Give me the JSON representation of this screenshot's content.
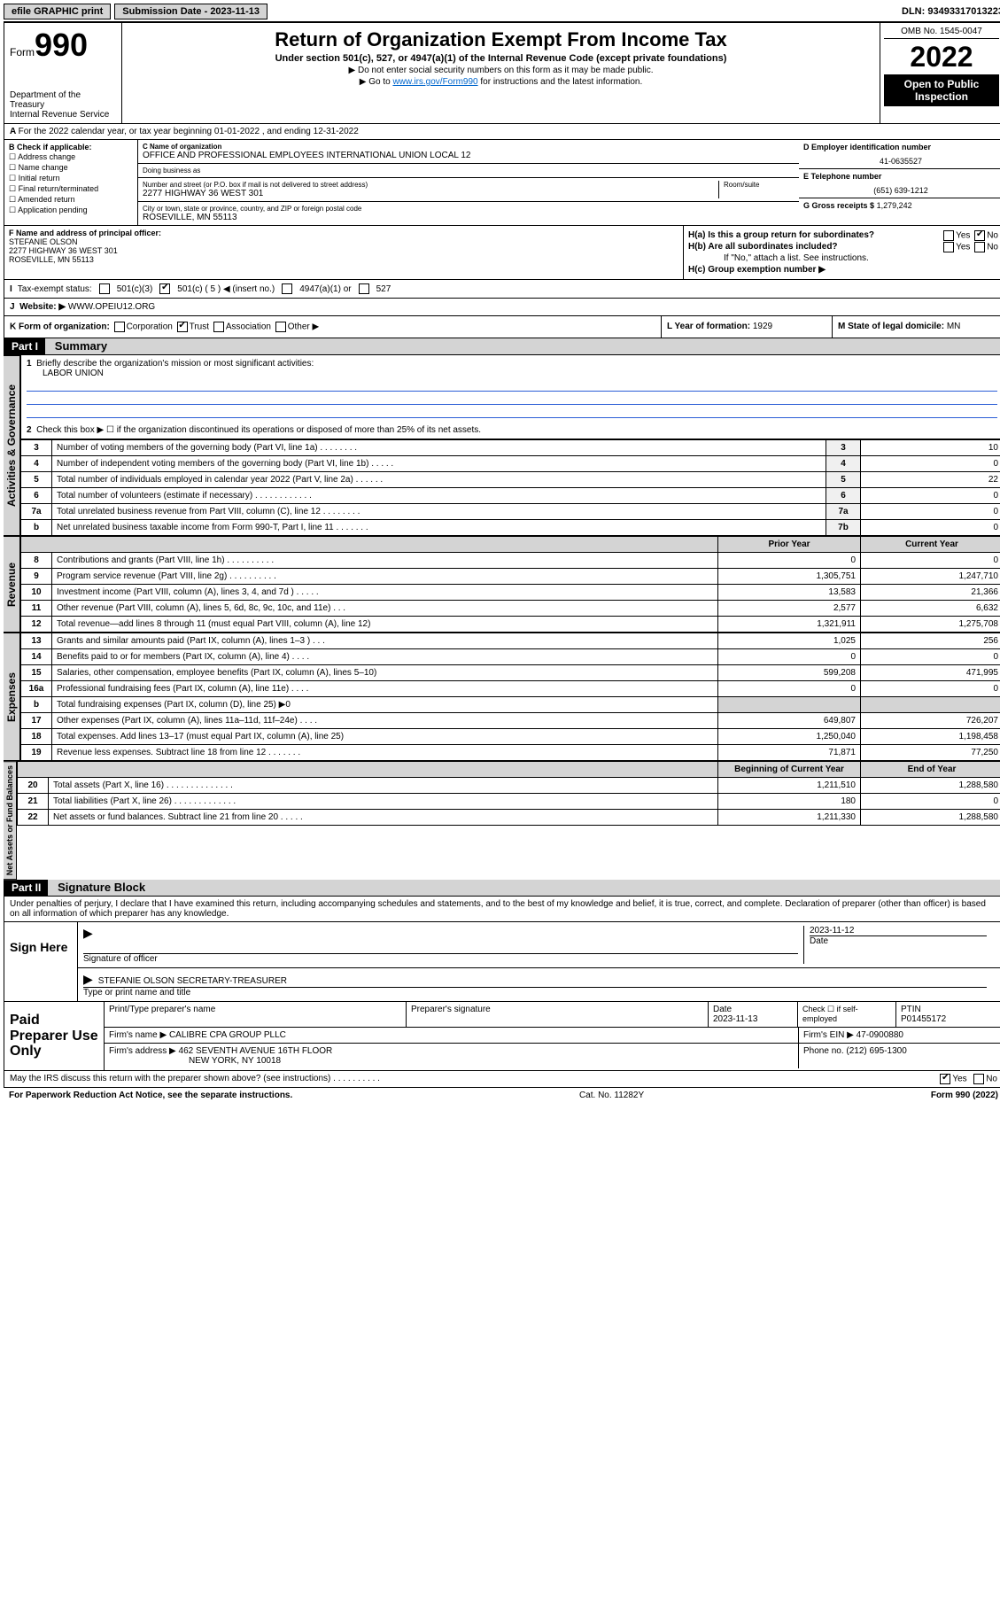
{
  "topbar": {
    "efile": "efile GRAPHIC print",
    "sub_label": "Submission Date - 2023-11-13",
    "dln": "DLN: 93493317013223"
  },
  "header": {
    "form_word": "Form",
    "form_num": "990",
    "dept": "Department of the Treasury",
    "irs": "Internal Revenue Service",
    "title": "Return of Organization Exempt From Income Tax",
    "subtitle": "Under section 501(c), 527, or 4947(a)(1) of the Internal Revenue Code (except private foundations)",
    "note1": "▶ Do not enter social security numbers on this form as it may be made public.",
    "note2_pre": "▶ Go to ",
    "note2_link": "www.irs.gov/Form990",
    "note2_post": " for instructions and the latest information.",
    "omb": "OMB No. 1545-0047",
    "year": "2022",
    "open": "Open to Public Inspection"
  },
  "lineA": "For the 2022 calendar year, or tax year beginning 01-01-2022   , and ending 12-31-2022",
  "B": {
    "title": "B Check if applicable:",
    "opts": [
      "Address change",
      "Name change",
      "Initial return",
      "Final return/terminated",
      "Amended return",
      "Application pending"
    ]
  },
  "C": {
    "name_lbl": "C Name of organization",
    "name": "OFFICE AND PROFESSIONAL EMPLOYEES INTERNATIONAL UNION LOCAL 12",
    "dba_lbl": "Doing business as",
    "addr_lbl": "Number and street (or P.O. box if mail is not delivered to street address)",
    "room_lbl": "Room/suite",
    "addr": "2277 HIGHWAY 36 WEST 301",
    "city_lbl": "City or town, state or province, country, and ZIP or foreign postal code",
    "city": "ROSEVILLE, MN  55113"
  },
  "D": {
    "lbl": "D Employer identification number",
    "val": "41-0635527"
  },
  "E": {
    "lbl": "E Telephone number",
    "val": "(651) 639-1212"
  },
  "G": {
    "lbl": "G Gross receipts $",
    "val": "1,279,242"
  },
  "F": {
    "lbl": "F  Name and address of principal officer:",
    "name": "STEFANIE OLSON",
    "addr": "2277 HIGHWAY 36 WEST 301",
    "city": "ROSEVILLE, MN  55113"
  },
  "H": {
    "a": "H(a)  Is this a group return for subordinates?",
    "b": "H(b)  Are all subordinates included?",
    "b_note": "If \"No,\" attach a list. See instructions.",
    "c": "H(c)  Group exemption number ▶",
    "yes": "Yes",
    "no": "No"
  },
  "I": {
    "lbl": "Tax-exempt status:",
    "o1": "501(c)(3)",
    "o2": "501(c) ( 5 ) ◀ (insert no.)",
    "o3": "4947(a)(1) or",
    "o4": "527"
  },
  "J": {
    "lbl": "Website: ▶",
    "val": "WWW.OPEIU12.ORG"
  },
  "K": {
    "lbl": "K Form of organization:",
    "o1": "Corporation",
    "o2": "Trust",
    "o3": "Association",
    "o4": "Other ▶"
  },
  "L": {
    "lbl": "L Year of formation:",
    "val": "1929"
  },
  "M": {
    "lbl": "M State of legal domicile:",
    "val": "MN"
  },
  "part1": {
    "hdr": "Part I",
    "title": "Summary"
  },
  "summary": {
    "q1_lbl": "Briefly describe the organization's mission or most significant activities:",
    "q1_val": "LABOR UNION",
    "q2": "Check this box ▶ ☐  if the organization discontinued its operations or disposed of more than 25% of its net assets.",
    "rows_simple": [
      {
        "n": "3",
        "d": "Number of voting members of the governing body (Part VI, line 1a)   .    .    .    .    .    .    .    .",
        "b": "3",
        "v": "10"
      },
      {
        "n": "4",
        "d": "Number of independent voting members of the governing body (Part VI, line 1b)   .   .   .   .   .",
        "b": "4",
        "v": "0"
      },
      {
        "n": "5",
        "d": "Total number of individuals employed in calendar year 2022 (Part V, line 2a)   .    .    .    .    .    .",
        "b": "5",
        "v": "22"
      },
      {
        "n": "6",
        "d": "Total number of volunteers (estimate if necessary)   .    .    .    .    .    .    .    .    .    .    .    .",
        "b": "6",
        "v": "0"
      },
      {
        "n": "7a",
        "d": "Total unrelated business revenue from Part VIII, column (C), line 12   .   .   .   .   .   .   .   .",
        "b": "7a",
        "v": "0"
      },
      {
        "n": "b",
        "d": "Net unrelated business taxable income from Form 990-T, Part I, line 11   .   .   .   .   .   .   .",
        "b": "7b",
        "v": "0"
      }
    ],
    "prior_hdr": "Prior Year",
    "curr_hdr": "Current Year",
    "rev_rows": [
      {
        "n": "8",
        "d": "Contributions and grants (Part VIII, line 1h)   .   .   .   .   .   .   .   .   .   .",
        "p": "0",
        "c": "0"
      },
      {
        "n": "9",
        "d": "Program service revenue (Part VIII, line 2g)   .   .   .   .   .   .   .   .   .   .",
        "p": "1,305,751",
        "c": "1,247,710"
      },
      {
        "n": "10",
        "d": "Investment income (Part VIII, column (A), lines 3, 4, and 7d )   .   .   .   .   .",
        "p": "13,583",
        "c": "21,366"
      },
      {
        "n": "11",
        "d": "Other revenue (Part VIII, column (A), lines 5, 6d, 8c, 9c, 10c, and 11e)   .   .   .",
        "p": "2,577",
        "c": "6,632"
      },
      {
        "n": "12",
        "d": "Total revenue—add lines 8 through 11 (must equal Part VIII, column (A), line 12)",
        "p": "1,321,911",
        "c": "1,275,708"
      }
    ],
    "exp_rows": [
      {
        "n": "13",
        "d": "Grants and similar amounts paid (Part IX, column (A), lines 1–3 )   .   .   .",
        "p": "1,025",
        "c": "256"
      },
      {
        "n": "14",
        "d": "Benefits paid to or for members (Part IX, column (A), line 4)   .   .   .   .",
        "p": "0",
        "c": "0"
      },
      {
        "n": "15",
        "d": "Salaries, other compensation, employee benefits (Part IX, column (A), lines 5–10)",
        "p": "599,208",
        "c": "471,995"
      },
      {
        "n": "16a",
        "d": "Professional fundraising fees (Part IX, column (A), line 11e)   .   .   .   .",
        "p": "0",
        "c": "0"
      },
      {
        "n": "b",
        "d": "Total fundraising expenses (Part IX, column (D), line 25) ▶0",
        "p": "",
        "c": ""
      },
      {
        "n": "17",
        "d": "Other expenses (Part IX, column (A), lines 11a–11d, 11f–24e)   .   .   .   .",
        "p": "649,807",
        "c": "726,207"
      },
      {
        "n": "18",
        "d": "Total expenses. Add lines 13–17 (must equal Part IX, column (A), line 25)",
        "p": "1,250,040",
        "c": "1,198,458"
      },
      {
        "n": "19",
        "d": "Revenue less expenses. Subtract line 18 from line 12   .   .   .   .   .   .   .",
        "p": "71,871",
        "c": "77,250"
      }
    ],
    "begin_hdr": "Beginning of Current Year",
    "end_hdr": "End of Year",
    "net_rows": [
      {
        "n": "20",
        "d": "Total assets (Part X, line 16)   .   .   .   .   .   .   .   .   .   .   .   .   .   .",
        "p": "1,211,510",
        "c": "1,288,580"
      },
      {
        "n": "21",
        "d": "Total liabilities (Part X, line 26)   .   .   .   .   .   .   .   .   .   .   .   .   .",
        "p": "180",
        "c": "0"
      },
      {
        "n": "22",
        "d": "Net assets or fund balances. Subtract line 21 from line 20   .   .   .   .   .",
        "p": "1,211,330",
        "c": "1,288,580"
      }
    ]
  },
  "vlabels": {
    "gov": "Activities & Governance",
    "rev": "Revenue",
    "exp": "Expenses",
    "net": "Net Assets or Fund Balances"
  },
  "part2": {
    "hdr": "Part II",
    "title": "Signature Block"
  },
  "penalty": "Under penalties of perjury, I declare that I have examined this return, including accompanying schedules and statements, and to the best of my knowledge and belief, it is true, correct, and complete. Declaration of preparer (other than officer) is based on all information of which preparer has any knowledge.",
  "sign": {
    "here": "Sign Here",
    "sig_lbl": "Signature of officer",
    "date_lbl": "Date",
    "date": "2023-11-12",
    "name": "STEFANIE OLSON  SECRETARY-TREASURER",
    "name_lbl": "Type or print name and title"
  },
  "prep": {
    "title": "Paid Preparer Use Only",
    "h1": "Print/Type preparer's name",
    "h2": "Preparer's signature",
    "h3": "Date",
    "h3v": "2023-11-13",
    "h4": "Check ☐ if self-employed",
    "h5": "PTIN",
    "h5v": "P01455172",
    "firm_lbl": "Firm's name    ▶",
    "firm": "CALIBRE CPA GROUP PLLC",
    "ein_lbl": "Firm's EIN ▶",
    "ein": "47-0900880",
    "addr_lbl": "Firm's address ▶",
    "addr1": "462 SEVENTH AVENUE 16TH FLOOR",
    "addr2": "NEW YORK, NY  10018",
    "phone_lbl": "Phone no.",
    "phone": "(212) 695-1300"
  },
  "may": {
    "q": "May the IRS discuss this return with the preparer shown above? (see instructions)   .   .   .   .   .   .   .   .   .   .",
    "yes": "Yes",
    "no": "No"
  },
  "footer": {
    "left": "For Paperwork Reduction Act Notice, see the separate instructions.",
    "mid": "Cat. No. 11282Y",
    "right": "Form 990 (2022)"
  }
}
